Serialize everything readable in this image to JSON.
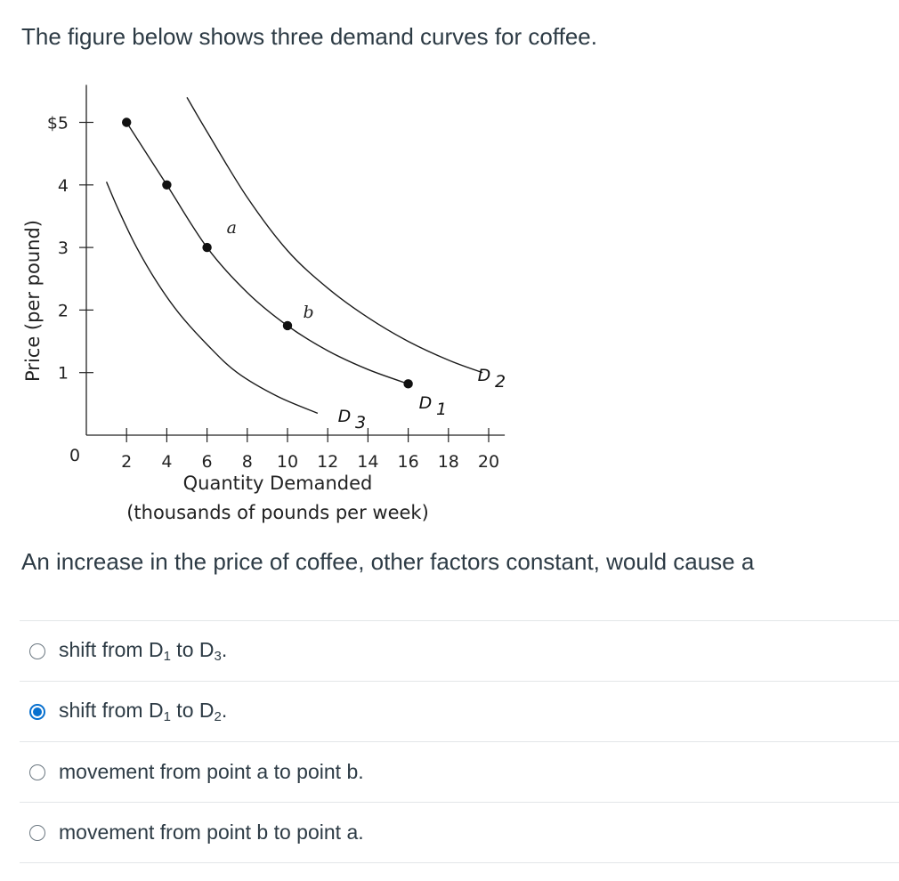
{
  "question": {
    "intro": "The figure below shows three demand curves for coffee.",
    "prompt": "An increase in the price of coffee, other factors constant, would cause a"
  },
  "figure": {
    "chart_data": {
      "type": "line",
      "title": "",
      "xlabel_line1": "Quantity Demanded",
      "xlabel_line2": "(thousands of pounds per week)",
      "ylabel": "Price (per pound)",
      "origin_label": "0",
      "x_ticks": [
        2,
        4,
        6,
        8,
        10,
        12,
        14,
        16,
        18,
        20
      ],
      "x_tick_labels": [
        "2",
        "4",
        "6",
        "8",
        "10",
        "12",
        "14",
        "16",
        "18",
        "20"
      ],
      "y_ticks": [
        1,
        2,
        3,
        4,
        5
      ],
      "y_tick_labels": [
        "1",
        "2",
        "3",
        "4",
        "$5"
      ],
      "xlim": [
        0,
        20.8
      ],
      "ylim": [
        0,
        5.6
      ],
      "series": [
        {
          "name": "D3",
          "label_main": "D",
          "label_sub": "3",
          "x": [
            1,
            1.6,
            2.5,
            3.5,
            4.6,
            6,
            7.5,
            9.5,
            11.5
          ],
          "y": [
            4.05,
            3.6,
            3.0,
            2.45,
            1.95,
            1.45,
            1.0,
            0.62,
            0.35
          ]
        },
        {
          "name": "D1",
          "label_main": "D",
          "label_sub": "1",
          "x": [
            2,
            4,
            6,
            8,
            10,
            12,
            14,
            16
          ],
          "y": [
            5,
            4,
            3,
            2.28,
            1.75,
            1.35,
            1.05,
            0.82
          ],
          "points": [
            {
              "x": 2,
              "y": 5
            },
            {
              "x": 4,
              "y": 4
            },
            {
              "x": 6,
              "y": 3
            },
            {
              "x": 10,
              "y": 1.75
            },
            {
              "x": 16,
              "y": 0.82
            }
          ]
        },
        {
          "name": "D2",
          "label_main": "D",
          "label_sub": "2",
          "x": [
            5,
            6,
            8,
            10,
            12,
            14,
            16,
            18,
            19.7
          ],
          "y": [
            5.4,
            4.85,
            3.8,
            2.95,
            2.35,
            1.88,
            1.5,
            1.2,
            1.0
          ]
        }
      ],
      "annotations": [
        {
          "text": "a",
          "x": 6.8,
          "y": 3.2
        },
        {
          "text": "b",
          "x": 10.6,
          "y": 1.85
        }
      ]
    }
  },
  "options": [
    {
      "pre": "shift from D",
      "sub1": "1",
      "mid": " to D",
      "sub2": "3",
      "post": ".",
      "checked": false
    },
    {
      "pre": "shift from D",
      "sub1": "1",
      "mid": " to D",
      "sub2": "2",
      "post": ".",
      "checked": true
    },
    {
      "pre": "movement from point a to point b.",
      "sub1": "",
      "mid": "",
      "sub2": "",
      "post": "",
      "checked": false
    },
    {
      "pre": "movement from point b to point a.",
      "sub1": "",
      "mid": "",
      "sub2": "",
      "post": "",
      "checked": false
    }
  ],
  "colors": {
    "text": "#2d3b45",
    "radio_selected": "#0770cf",
    "divider": "#e3e6e8"
  }
}
